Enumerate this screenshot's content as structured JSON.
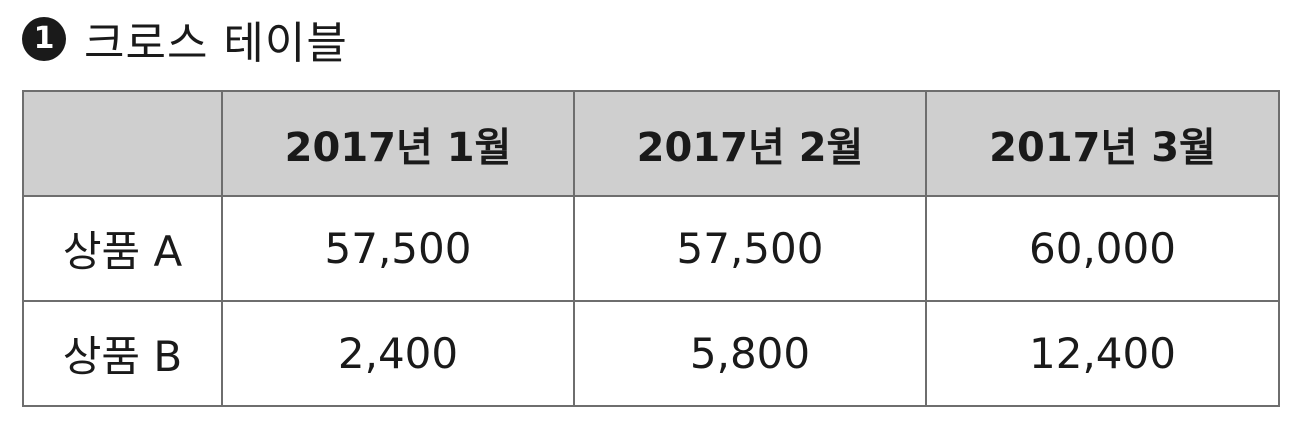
{
  "heading": {
    "number": "1",
    "title": "크로스 테이블"
  },
  "table": {
    "corner": "",
    "columns": [
      "2017년 1월",
      "2017년 2월",
      "2017년 3월"
    ],
    "rows": [
      {
        "label": "상품 A",
        "values": [
          "57,500",
          "57,500",
          "60,000"
        ]
      },
      {
        "label": "상품 B",
        "values": [
          "2,400",
          "5,800",
          "12,400"
        ]
      }
    ]
  },
  "colors": {
    "header_background": "#cfcfcf",
    "border": "#6e6e6e",
    "text": "#1a1a1a"
  }
}
